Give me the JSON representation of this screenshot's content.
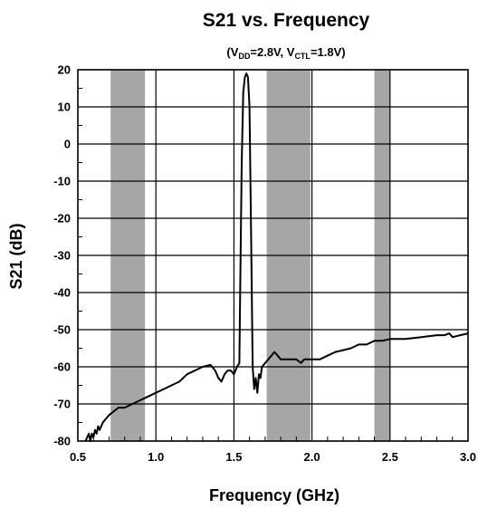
{
  "chart_data": {
    "type": "line",
    "title": "S21 vs. Frequency",
    "subtitle": {
      "prefix": "(V",
      "sub1": "DD",
      "mid": "=2.8V, V",
      "sub2": "CTL",
      "suffix": "=1.8V)"
    },
    "xlabel": "Frequency (GHz)",
    "ylabel": "S21 (dB)",
    "xlim": [
      0.5,
      3.0
    ],
    "ylim": [
      -80,
      20
    ],
    "xticks": [
      "0.5",
      "1.0",
      "1.5",
      "2.0",
      "2.5",
      "3.0"
    ],
    "xtick_values": [
      0.5,
      1.0,
      1.5,
      2.0,
      2.5,
      3.0
    ],
    "yticks": [
      "20",
      "10",
      "0",
      "-10",
      "-20",
      "-30",
      "-40",
      "-50",
      "-60",
      "-70",
      "-80"
    ],
    "ytick_values": [
      20,
      10,
      0,
      -10,
      -20,
      -30,
      -40,
      -50,
      -60,
      -70,
      -80
    ],
    "grid": true,
    "shaded_bands": [
      {
        "x0": 0.71,
        "x1": 0.93
      },
      {
        "x0": 1.71,
        "x1": 1.99
      },
      {
        "x0": 2.4,
        "x1": 2.5
      }
    ],
    "series": [
      {
        "x": [
          0.55,
          0.56,
          0.57,
          0.58,
          0.59,
          0.6,
          0.61,
          0.62,
          0.63,
          0.64,
          0.66,
          0.68,
          0.7,
          0.73,
          0.76,
          0.8,
          0.85,
          0.9,
          0.95,
          1.0,
          1.05,
          1.1,
          1.15,
          1.2,
          1.25,
          1.3,
          1.35,
          1.38,
          1.4,
          1.42,
          1.44,
          1.46,
          1.48,
          1.5,
          1.52,
          1.535,
          1.54,
          1.55,
          1.56,
          1.57,
          1.58,
          1.59,
          1.6,
          1.61,
          1.62,
          1.63,
          1.64,
          1.65,
          1.66,
          1.67,
          1.68,
          1.7,
          1.72,
          1.74,
          1.76,
          1.78,
          1.8,
          1.85,
          1.9,
          1.93,
          1.95,
          2.0,
          2.05,
          2.1,
          2.15,
          2.2,
          2.25,
          2.3,
          2.35,
          2.4,
          2.45,
          2.5,
          2.6,
          2.7,
          2.8,
          2.85,
          2.88,
          2.9,
          2.95,
          3.0
        ],
        "y": [
          -80,
          -79,
          -78,
          -80,
          -78,
          -79,
          -77,
          -78,
          -76,
          -77,
          -75,
          -74,
          -73,
          -72,
          -71,
          -71,
          -70,
          -69,
          -68,
          -67,
          -66,
          -65,
          -64,
          -62,
          -61,
          -60,
          -59.5,
          -61,
          -63,
          -64,
          -62,
          -61,
          -61,
          -62,
          -60,
          -59,
          -40,
          -5,
          14,
          18,
          19,
          18,
          10,
          -25,
          -60,
          -66,
          -63,
          -67,
          -62,
          -63,
          -60,
          -59,
          -58,
          -57,
          -56,
          -57,
          -58,
          -58,
          -58,
          -59,
          -58,
          -58,
          -58,
          -57,
          -56,
          -55.5,
          -55,
          -54,
          -54,
          -53,
          -53,
          -52.5,
          -52.5,
          -52,
          -51.5,
          -51.5,
          -51,
          -52,
          -51.5,
          -51
        ]
      }
    ]
  }
}
